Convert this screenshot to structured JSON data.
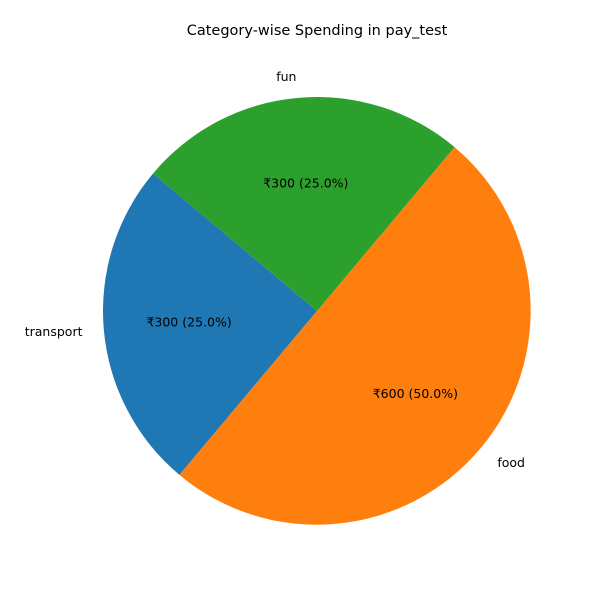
{
  "chart_data": {
    "type": "pie",
    "title": "Category-wise Spending in pay_test",
    "categories": [
      "transport",
      "food",
      "fun"
    ],
    "values": [
      300,
      600,
      300
    ],
    "value_labels": [
      "₹300 (25.0%)",
      "₹600 (50.0%)",
      "₹300 (25.0%)"
    ],
    "colors": [
      "#1f77b4",
      "#ff7f0e",
      "#2ca02c"
    ],
    "start_angle_deg": 140,
    "direction": "counterclockwise"
  }
}
